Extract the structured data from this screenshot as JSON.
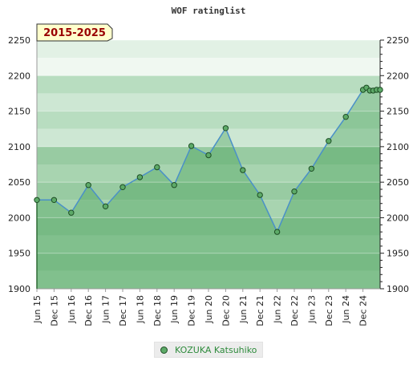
{
  "chart_data": {
    "type": "area",
    "title": "WOF ratinglist",
    "range_label": "2015-2025",
    "xlabel": "",
    "ylabel": "",
    "ylim": [
      1900,
      2250
    ],
    "y_ticks": [
      1900,
      1950,
      2000,
      2050,
      2100,
      2150,
      2200,
      2250
    ],
    "x_tick_labels": [
      "Jun 15",
      "Dec 15",
      "Jun 16",
      "Dec 16",
      "Jun 17",
      "Dec 17",
      "Jun 18",
      "Dec 18",
      "Jun 19",
      "Dec 19",
      "Jun 20",
      "Dec 20",
      "Jun 21",
      "Dec 21",
      "Jun 22",
      "Dec 22",
      "Jun 23",
      "Dec 23",
      "Jun 24",
      "Dec 24"
    ],
    "grid": true,
    "legend_position": "bottom",
    "series": [
      {
        "name": "KOZUKA Katsuhiko",
        "color": "#5daa68",
        "line_color": "#4a90c8",
        "points": [
          {
            "x": 0.0,
            "y": 2025
          },
          {
            "x": 1.0,
            "y": 2025
          },
          {
            "x": 2.0,
            "y": 2007
          },
          {
            "x": 3.0,
            "y": 2046
          },
          {
            "x": 4.0,
            "y": 2016
          },
          {
            "x": 5.0,
            "y": 2043
          },
          {
            "x": 6.0,
            "y": 2057
          },
          {
            "x": 7.0,
            "y": 2071
          },
          {
            "x": 8.0,
            "y": 2046
          },
          {
            "x": 9.0,
            "y": 2101
          },
          {
            "x": 10.0,
            "y": 2088
          },
          {
            "x": 11.0,
            "y": 2126
          },
          {
            "x": 12.0,
            "y": 2067
          },
          {
            "x": 13.0,
            "y": 2032
          },
          {
            "x": 14.0,
            "y": 1980
          },
          {
            "x": 15.0,
            "y": 2037
          },
          {
            "x": 16.0,
            "y": 2069
          },
          {
            "x": 17.0,
            "y": 2108
          },
          {
            "x": 18.0,
            "y": 2142
          },
          {
            "x": 19.0,
            "y": 2180
          },
          {
            "x": 19.2,
            "y": 2183
          },
          {
            "x": 19.4,
            "y": 2179
          },
          {
            "x": 19.6,
            "y": 2179
          },
          {
            "x": 19.8,
            "y": 2180
          },
          {
            "x": 20.0,
            "y": 2180
          }
        ]
      }
    ]
  }
}
